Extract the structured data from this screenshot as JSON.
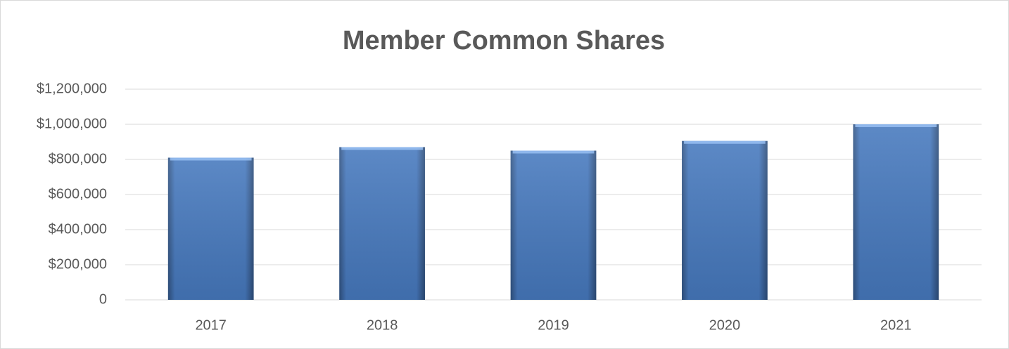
{
  "chart_data": {
    "type": "bar",
    "title": "Member Common Shares",
    "categories": [
      "2017",
      "2018",
      "2019",
      "2020",
      "2021"
    ],
    "values": [
      810000,
      870000,
      850000,
      905000,
      1000000
    ],
    "color": "#4a7fc8",
    "ylim": [
      0,
      1200000
    ],
    "yticks": [
      0,
      {
        "value": 200000,
        "label": "$200,000"
      },
      {
        "value": 400000,
        "label": "$400,000"
      },
      {
        "value": 600000,
        "label": "$600,000"
      },
      {
        "value": 800000,
        "label": "$800,000"
      },
      {
        "value": 1000000,
        "label": "$1,000,000"
      },
      {
        "value": 1200000,
        "label": "$1,200,000"
      }
    ],
    "grid": true
  }
}
